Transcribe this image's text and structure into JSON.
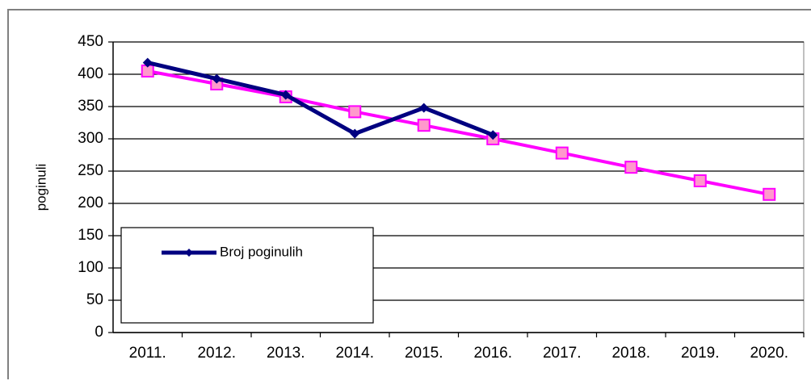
{
  "chart_data": {
    "type": "line",
    "y_label": "poginuli",
    "categories": [
      "2011.",
      "2012.",
      "2013.",
      "2014.",
      "2015.",
      "2016.",
      "2017.",
      "2018.",
      "2019.",
      "2020."
    ],
    "series": [
      {
        "name": "Broj poginulih",
        "color": "#000080",
        "values": [
          418,
          393,
          368,
          308,
          348,
          306,
          null,
          null,
          null,
          null
        ]
      },
      {
        "color": "#ff00ff",
        "values": [
          405,
          385,
          365,
          342,
          321,
          300,
          278,
          256,
          235,
          214
        ]
      }
    ],
    "ylim": [
      0,
      450
    ],
    "yticks": [
      0,
      50,
      100,
      150,
      200,
      250,
      300,
      350,
      400,
      450
    ],
    "grid": true
  }
}
